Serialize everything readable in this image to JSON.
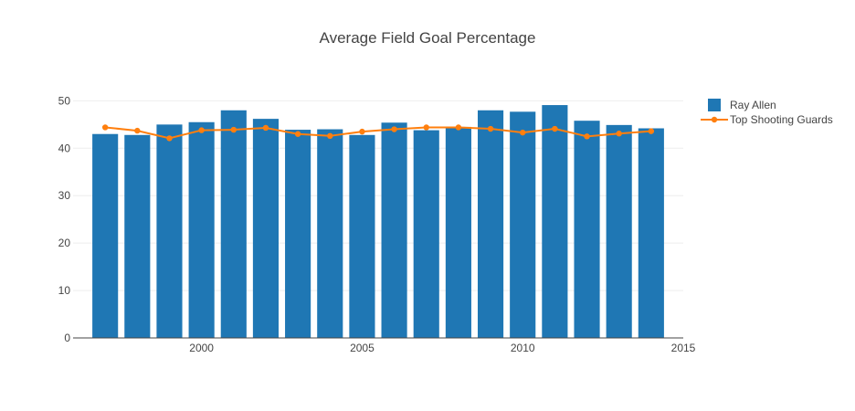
{
  "chart_data": {
    "type": "bar",
    "title": "Average Field Goal Percentage",
    "xlabel": "",
    "ylabel": "",
    "x": [
      1997,
      1998,
      1999,
      2000,
      2001,
      2002,
      2003,
      2004,
      2005,
      2006,
      2007,
      2008,
      2009,
      2010,
      2011,
      2012,
      2013,
      2014
    ],
    "xlim": [
      1996,
      2015
    ],
    "ylim": [
      0,
      52
    ],
    "xticks": [
      2000,
      2005,
      2010,
      2015
    ],
    "yticks": [
      0,
      10,
      20,
      30,
      40,
      50
    ],
    "grid": true,
    "legend_position": "top-right",
    "series": [
      {
        "name": "Ray Allen",
        "type": "bar",
        "color": "#1f77b4",
        "values": [
          43.0,
          42.8,
          45.0,
          45.5,
          48.0,
          46.2,
          43.9,
          44.0,
          42.8,
          45.4,
          43.8,
          44.5,
          48.0,
          47.7,
          49.1,
          45.8,
          44.9,
          44.2
        ]
      },
      {
        "name": "Top Shooting Guards",
        "type": "line",
        "color": "#ff7f0e",
        "values": [
          44.4,
          43.7,
          42.1,
          43.8,
          43.9,
          44.3,
          43.0,
          42.6,
          43.5,
          44.0,
          44.4,
          44.4,
          44.1,
          43.3,
          44.1,
          42.5,
          43.1,
          43.6
        ]
      }
    ]
  }
}
